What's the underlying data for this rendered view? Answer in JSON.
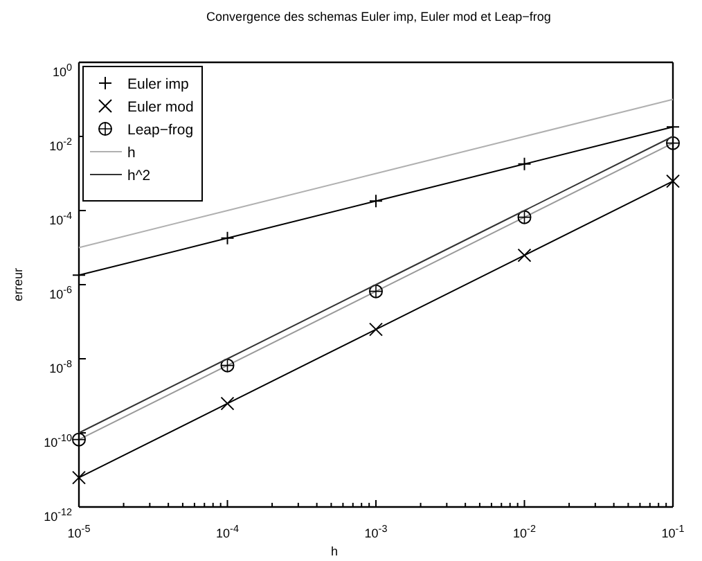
{
  "chart_data": {
    "type": "line",
    "title": "Convergence des schemas Euler imp, Euler mod et Leap−frog",
    "xlabel": "h",
    "ylabel": "erreur",
    "log": "xy",
    "grid": false,
    "legend": "top left",
    "x": [
      1e-05,
      0.0001,
      0.001,
      0.01,
      0.1
    ],
    "xlim": [
      1e-05,
      0.1
    ],
    "xticks": [
      {
        "value": 1e-05,
        "label": "10$^{-5}$"
      },
      {
        "value": 2e-05,
        "label": null
      },
      {
        "value": 3e-05,
        "label": null
      },
      {
        "value": 4e-05,
        "label": null
      },
      {
        "value": 5e-05,
        "label": null
      },
      {
        "value": 6e-05,
        "label": null
      },
      {
        "value": 7e-05,
        "label": null
      },
      {
        "value": 8e-05,
        "label": null
      },
      {
        "value": 9e-05,
        "label": null
      },
      {
        "value": 0.0001,
        "label": "10$^{-4}$"
      },
      {
        "value": 0.0002,
        "label": null
      },
      {
        "value": 0.0003,
        "label": null
      },
      {
        "value": 0.0004,
        "label": null
      },
      {
        "value": 0.0005,
        "label": null
      },
      {
        "value": 0.0006,
        "label": null
      },
      {
        "value": 0.0007,
        "label": null
      },
      {
        "value": 0.0008,
        "label": null
      },
      {
        "value": 0.0009,
        "label": null
      },
      {
        "value": 0.001,
        "label": "10$^{-3}$"
      },
      {
        "value": 0.002,
        "label": null
      },
      {
        "value": 0.003,
        "label": null
      },
      {
        "value": 0.004,
        "label": null
      },
      {
        "value": 0.005,
        "label": null
      },
      {
        "value": 0.006,
        "label": null
      },
      {
        "value": 0.007,
        "label": null
      },
      {
        "value": 0.008,
        "label": null
      },
      {
        "value": 0.009,
        "label": null
      },
      {
        "value": 0.01,
        "label": "10$^{-2}$"
      },
      {
        "value": 0.02,
        "label": null
      },
      {
        "value": 0.03,
        "label": null
      },
      {
        "value": 0.04,
        "label": null
      },
      {
        "value": 0.05,
        "label": null
      },
      {
        "value": 0.06,
        "label": null
      },
      {
        "value": 0.07,
        "label": null
      },
      {
        "value": 0.08,
        "label": null
      },
      {
        "value": 0.09,
        "label": null
      },
      {
        "value": 0.1,
        "label": "10$^{-1}$"
      }
    ],
    "ylim": [
      1e-12,
      1
    ],
    "yticks": [
      {
        "value": 1e-12,
        "label": "10$^{-12}$"
      },
      {
        "value": 1e-10,
        "label": "10$^{-10}$"
      },
      {
        "value": 1e-08,
        "label": "10$^{-8}$"
      },
      {
        "value": 1e-06,
        "label": "10$^{-6}$"
      },
      {
        "value": 0.0001,
        "label": "10$^{-4}$"
      },
      {
        "value": 0.01,
        "label": "10$^{-2}$"
      },
      {
        "value": 1,
        "label": "10$^{0}$"
      }
    ],
    "series": [
      {
        "name": "Euler imp",
        "color": "#000000",
        "marker": "plus",
        "values": [
          1.8e-06,
          1.8e-05,
          0.00018,
          0.0018,
          0.018
        ]
      },
      {
        "name": "Euler mod",
        "color": "#000000",
        "marker": "cross",
        "values": [
          6.2e-12,
          6.2e-10,
          6.2e-08,
          6.2e-06,
          0.00062
        ]
      },
      {
        "name": "Leap−frog",
        "color": "#999999",
        "marker": "circle",
        "values": [
          6.6e-11,
          6.6e-09,
          6.6e-07,
          6.6e-05,
          0.0066
        ]
      },
      {
        "name": "h",
        "color": "#b0b0b0",
        "marker": "none",
        "values": [
          1e-05,
          0.0001,
          0.001,
          0.01,
          0.1
        ]
      },
      {
        "name": "h^2",
        "color": "#333333",
        "marker": "none",
        "values": [
          1e-10,
          1e-08,
          1e-06,
          0.0001,
          0.01
        ]
      }
    ]
  }
}
